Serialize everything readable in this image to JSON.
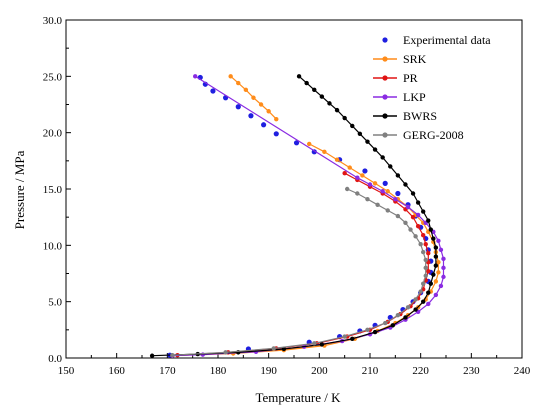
{
  "chart_data": {
    "type": "line",
    "title": "",
    "xlabel": "Temperature  / K",
    "ylabel": "Pressure / MPa",
    "xlim": [
      150,
      240
    ],
    "ylim": [
      0,
      30
    ],
    "x_ticks": [
      150,
      160,
      170,
      180,
      190,
      200,
      210,
      220,
      230,
      240
    ],
    "y_ticks": [
      0,
      5,
      10,
      15,
      20,
      25,
      30
    ],
    "x_tick_labels": [
      "150",
      "160",
      "170",
      "180",
      "190",
      "200",
      "210",
      "220",
      "230",
      "240"
    ],
    "y_tick_labels": [
      "0.0",
      "5.0",
      "10.0",
      "15.0",
      "20.0",
      "25.0",
      "30.0"
    ],
    "grid": false,
    "legend_position": "top-right",
    "series": [
      {
        "name": "Experimental data",
        "color": "#1f1fe0",
        "style": "points",
        "points": [
          [
            170.5,
            0.25
          ],
          [
            186.0,
            0.8
          ],
          [
            198.0,
            1.4
          ],
          [
            204.0,
            1.9
          ],
          [
            208.0,
            2.4
          ],
          [
            211.0,
            2.9
          ],
          [
            214.0,
            3.6
          ],
          [
            216.5,
            4.3
          ],
          [
            218.5,
            5.0
          ],
          [
            220.0,
            5.8
          ],
          [
            221.5,
            6.8
          ],
          [
            222.0,
            7.6
          ],
          [
            222.0,
            8.6
          ],
          [
            221.5,
            9.6
          ],
          [
            221.0,
            10.6
          ],
          [
            220.0,
            11.6
          ],
          [
            219.0,
            12.6
          ],
          [
            217.5,
            13.6
          ],
          [
            215.5,
            14.6
          ],
          [
            213.0,
            15.5
          ],
          [
            209.0,
            16.6
          ],
          [
            204.0,
            17.6
          ],
          [
            199.0,
            18.3
          ],
          [
            195.5,
            19.1
          ],
          [
            191.5,
            19.9
          ],
          [
            189.0,
            20.7
          ],
          [
            186.5,
            21.5
          ],
          [
            184.0,
            22.3
          ],
          [
            181.5,
            23.1
          ],
          [
            179.0,
            23.7
          ],
          [
            177.5,
            24.3
          ],
          [
            176.5,
            24.9
          ]
        ]
      },
      {
        "name": "SRK",
        "color": "#ff8c1a",
        "style": "line-markers",
        "points": [
          [
            182.5,
            25.0
          ],
          [
            184.0,
            24.4
          ],
          [
            185.5,
            23.8
          ],
          [
            187.0,
            23.1
          ],
          [
            188.5,
            22.5
          ],
          [
            190.0,
            21.9
          ],
          [
            191.5,
            21.2
          ]
        ]
      },
      {
        "name": "SRK",
        "color": "#ff8c1a",
        "style": "line-markers",
        "points": [
          [
            198.0,
            19.0
          ],
          [
            201.0,
            18.3
          ],
          [
            203.5,
            17.6
          ],
          [
            206.0,
            16.9
          ],
          [
            208.5,
            16.2
          ],
          [
            211.0,
            15.5
          ],
          [
            213.5,
            14.8
          ],
          [
            215.5,
            14.1
          ],
          [
            217.5,
            13.4
          ],
          [
            219.0,
            12.7
          ],
          [
            220.5,
            12.0
          ],
          [
            221.5,
            11.2
          ],
          [
            222.5,
            10.3
          ],
          [
            223.0,
            9.4
          ],
          [
            223.5,
            8.5
          ],
          [
            223.5,
            7.6
          ],
          [
            223.0,
            6.8
          ],
          [
            222.0,
            5.9
          ],
          [
            221.0,
            5.2
          ],
          [
            219.5,
            4.5
          ],
          [
            217.5,
            3.8
          ],
          [
            215.0,
            3.1
          ],
          [
            211.5,
            2.4
          ],
          [
            207.0,
            1.7
          ],
          [
            201.0,
            1.1
          ],
          [
            193.0,
            0.7
          ],
          [
            183.0,
            0.4
          ],
          [
            171.0,
            0.2
          ]
        ]
      },
      {
        "name": "PR",
        "color": "#e01414",
        "style": "line-markers",
        "points": [
          [
            205.0,
            16.4
          ],
          [
            207.5,
            15.8
          ],
          [
            210.0,
            15.2
          ],
          [
            212.5,
            14.6
          ],
          [
            215.0,
            13.9
          ],
          [
            217.0,
            13.2
          ],
          [
            218.5,
            12.5
          ],
          [
            219.5,
            11.7
          ],
          [
            220.5,
            10.9
          ],
          [
            221.0,
            10.1
          ],
          [
            221.5,
            9.3
          ],
          [
            221.5,
            8.5
          ],
          [
            221.5,
            7.7
          ],
          [
            221.0,
            6.9
          ],
          [
            220.5,
            6.1
          ],
          [
            219.5,
            5.3
          ],
          [
            218.0,
            4.6
          ],
          [
            216.0,
            3.9
          ],
          [
            213.5,
            3.2
          ],
          [
            210.0,
            2.5
          ],
          [
            205.5,
            1.9
          ],
          [
            199.5,
            1.3
          ],
          [
            191.5,
            0.85
          ],
          [
            182.0,
            0.5
          ],
          [
            172.0,
            0.25
          ]
        ]
      },
      {
        "name": "LKP",
        "color": "#8a2be2",
        "style": "line-markers",
        "points": [
          [
            175.5,
            25.0
          ],
          [
            207.5,
            16.0
          ],
          [
            210.0,
            15.4
          ],
          [
            212.5,
            14.8
          ],
          [
            215.0,
            14.1
          ],
          [
            217.5,
            13.4
          ],
          [
            219.5,
            12.7
          ],
          [
            221.0,
            12.0
          ],
          [
            222.5,
            11.2
          ],
          [
            223.5,
            10.4
          ],
          [
            224.0,
            9.6
          ],
          [
            224.5,
            8.8
          ],
          [
            224.5,
            8.0
          ],
          [
            224.5,
            7.2
          ],
          [
            224.0,
            6.4
          ],
          [
            223.0,
            5.6
          ],
          [
            221.5,
            4.8
          ],
          [
            219.5,
            4.1
          ],
          [
            217.0,
            3.4
          ],
          [
            214.0,
            2.7
          ],
          [
            210.0,
            2.1
          ],
          [
            204.5,
            1.5
          ],
          [
            197.0,
            1.0
          ],
          [
            187.5,
            0.55
          ],
          [
            177.0,
            0.3
          ],
          [
            171.0,
            0.2
          ]
        ]
      },
      {
        "name": "BWRS",
        "color": "#000000",
        "style": "line-markers",
        "points": [
          [
            196.0,
            25.0
          ],
          [
            197.5,
            24.4
          ],
          [
            199.0,
            23.8
          ],
          [
            200.5,
            23.2
          ],
          [
            202.0,
            22.6
          ],
          [
            203.5,
            22.0
          ],
          [
            205.0,
            21.3
          ],
          [
            206.5,
            20.6
          ],
          [
            208.0,
            19.9
          ],
          [
            209.5,
            19.2
          ],
          [
            211.0,
            18.5
          ],
          [
            212.5,
            17.8
          ],
          [
            214.0,
            17.0
          ],
          [
            215.5,
            16.2
          ],
          [
            217.0,
            15.4
          ],
          [
            218.5,
            14.6
          ],
          [
            219.5,
            13.8
          ],
          [
            220.5,
            13.0
          ],
          [
            221.5,
            12.2
          ],
          [
            222.0,
            11.4
          ],
          [
            222.5,
            10.6
          ],
          [
            223.0,
            9.8
          ],
          [
            223.0,
            9.0
          ],
          [
            223.0,
            8.2
          ],
          [
            222.5,
            7.4
          ],
          [
            222.0,
            6.6
          ],
          [
            221.5,
            5.8
          ],
          [
            220.5,
            5.0
          ],
          [
            219.0,
            4.3
          ],
          [
            217.0,
            3.6
          ],
          [
            214.5,
            2.9
          ],
          [
            211.0,
            2.3
          ],
          [
            206.5,
            1.7
          ],
          [
            200.5,
            1.2
          ],
          [
            193.0,
            0.8
          ],
          [
            184.0,
            0.5
          ],
          [
            176.0,
            0.35
          ],
          [
            167.0,
            0.2
          ]
        ]
      },
      {
        "name": "GERG-2008",
        "color": "#808080",
        "style": "line-markers",
        "points": [
          [
            205.5,
            15.0
          ],
          [
            207.5,
            14.6
          ],
          [
            209.5,
            14.1
          ],
          [
            211.5,
            13.6
          ],
          [
            213.5,
            13.1
          ],
          [
            215.5,
            12.6
          ],
          [
            217.0,
            12.0
          ],
          [
            218.0,
            11.4
          ],
          [
            219.0,
            10.8
          ],
          [
            220.0,
            10.1
          ],
          [
            220.5,
            9.4
          ],
          [
            221.0,
            8.7
          ],
          [
            221.0,
            8.0
          ],
          [
            221.0,
            7.3
          ],
          [
            220.5,
            6.6
          ],
          [
            220.0,
            5.9
          ],
          [
            219.0,
            5.2
          ],
          [
            217.5,
            4.5
          ],
          [
            215.5,
            3.8
          ],
          [
            213.0,
            3.1
          ],
          [
            209.5,
            2.5
          ],
          [
            205.0,
            1.9
          ],
          [
            199.0,
            1.3
          ],
          [
            191.0,
            0.85
          ],
          [
            181.5,
            0.5
          ],
          [
            171.0,
            0.25
          ]
        ]
      }
    ],
    "legend": [
      {
        "label": "Experimental data",
        "color": "#1f1fe0",
        "style": "points"
      },
      {
        "label": "SRK",
        "color": "#ff8c1a",
        "style": "line-markers"
      },
      {
        "label": "PR",
        "color": "#e01414",
        "style": "line-markers"
      },
      {
        "label": "LKP",
        "color": "#8a2be2",
        "style": "line-markers"
      },
      {
        "label": "BWRS",
        "color": "#000000",
        "style": "line-markers"
      },
      {
        "label": "GERG-2008",
        "color": "#808080",
        "style": "line-markers"
      }
    ]
  }
}
